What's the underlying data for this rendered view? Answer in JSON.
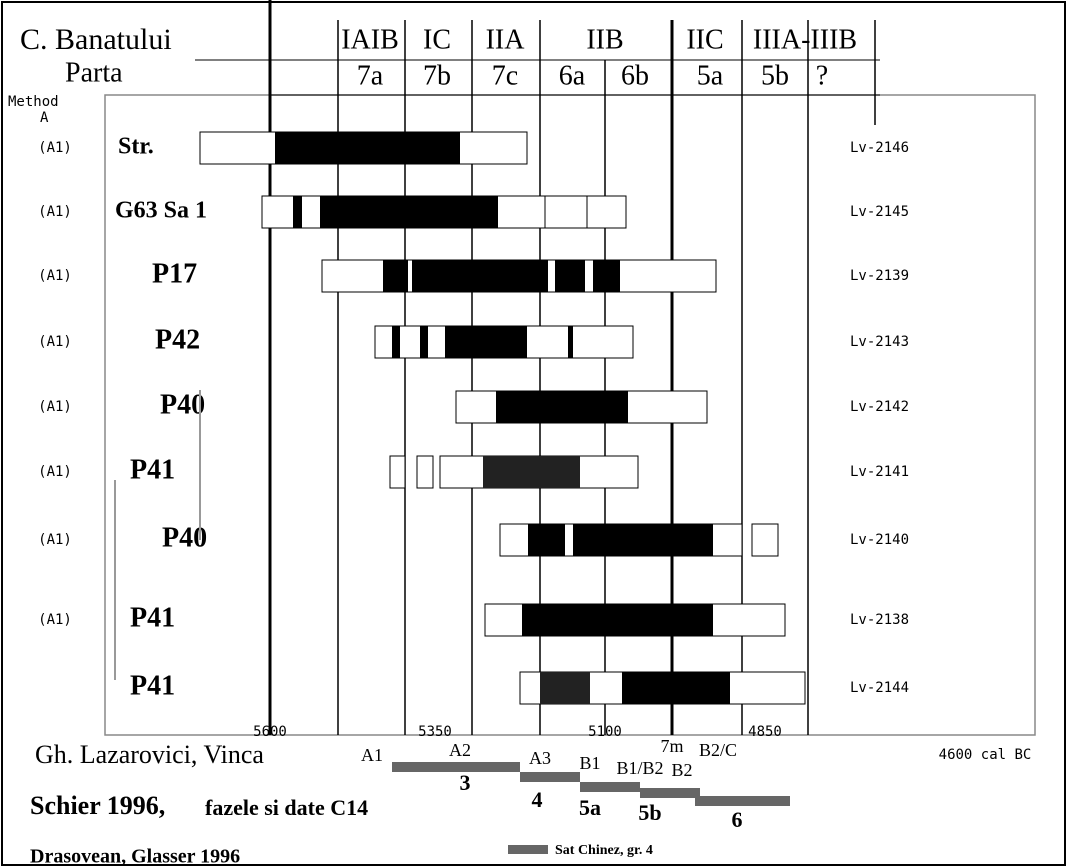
{
  "header": {
    "site": "C. Banatului",
    "subsite": "Parta",
    "method": [
      "Method",
      "A"
    ]
  },
  "phases": [
    "IAIB",
    "IC",
    "IIA",
    "IIB",
    "IIC",
    "IIIA-IIIB"
  ],
  "subphases": [
    "7a",
    "7b",
    "7c",
    "6a",
    "6b",
    "5a",
    "5b",
    "?"
  ],
  "rows": [
    {
      "method": "(A1)",
      "sample": "Str.",
      "lab": "Lv-2146"
    },
    {
      "method": "(A1)",
      "sample": "G63 Sa 1",
      "lab": "Lv-2145"
    },
    {
      "method": "(A1)",
      "sample": "P17",
      "lab": "Lv-2139"
    },
    {
      "method": "(A1)",
      "sample": "P42",
      "lab": "Lv-2143"
    },
    {
      "method": "(A1)",
      "sample": "P40",
      "lab": "Lv-2142"
    },
    {
      "method": "(A1)",
      "sample": "P41",
      "lab": "Lv-2141"
    },
    {
      "method": "(A1)",
      "sample": "P40",
      "lab": "Lv-2140"
    },
    {
      "method": "(A1)",
      "sample": "P41",
      "lab": "Lv-2138"
    },
    {
      "method": null,
      "sample": "P41",
      "lab": "Lv-2144"
    }
  ],
  "axis_labels": [
    "5600",
    "5350",
    "5100",
    "4850",
    "4600 cal BC"
  ],
  "lazarovici": {
    "title": "Gh. Lazarovici, Vinca",
    "labels": [
      "A1",
      "A2",
      "A3",
      "B1",
      "B1/B2",
      "B2",
      "7m",
      "B2/C"
    ]
  },
  "schier": {
    "title": "Schier 1996,",
    "subtitle": "fazele si date C14",
    "labels": [
      "3",
      "4",
      "5a",
      "5b",
      "6"
    ]
  },
  "drasovean": {
    "title": "Drasovean, Glasser 1996",
    "legend": "Sat Chinez, gr. 4"
  }
}
